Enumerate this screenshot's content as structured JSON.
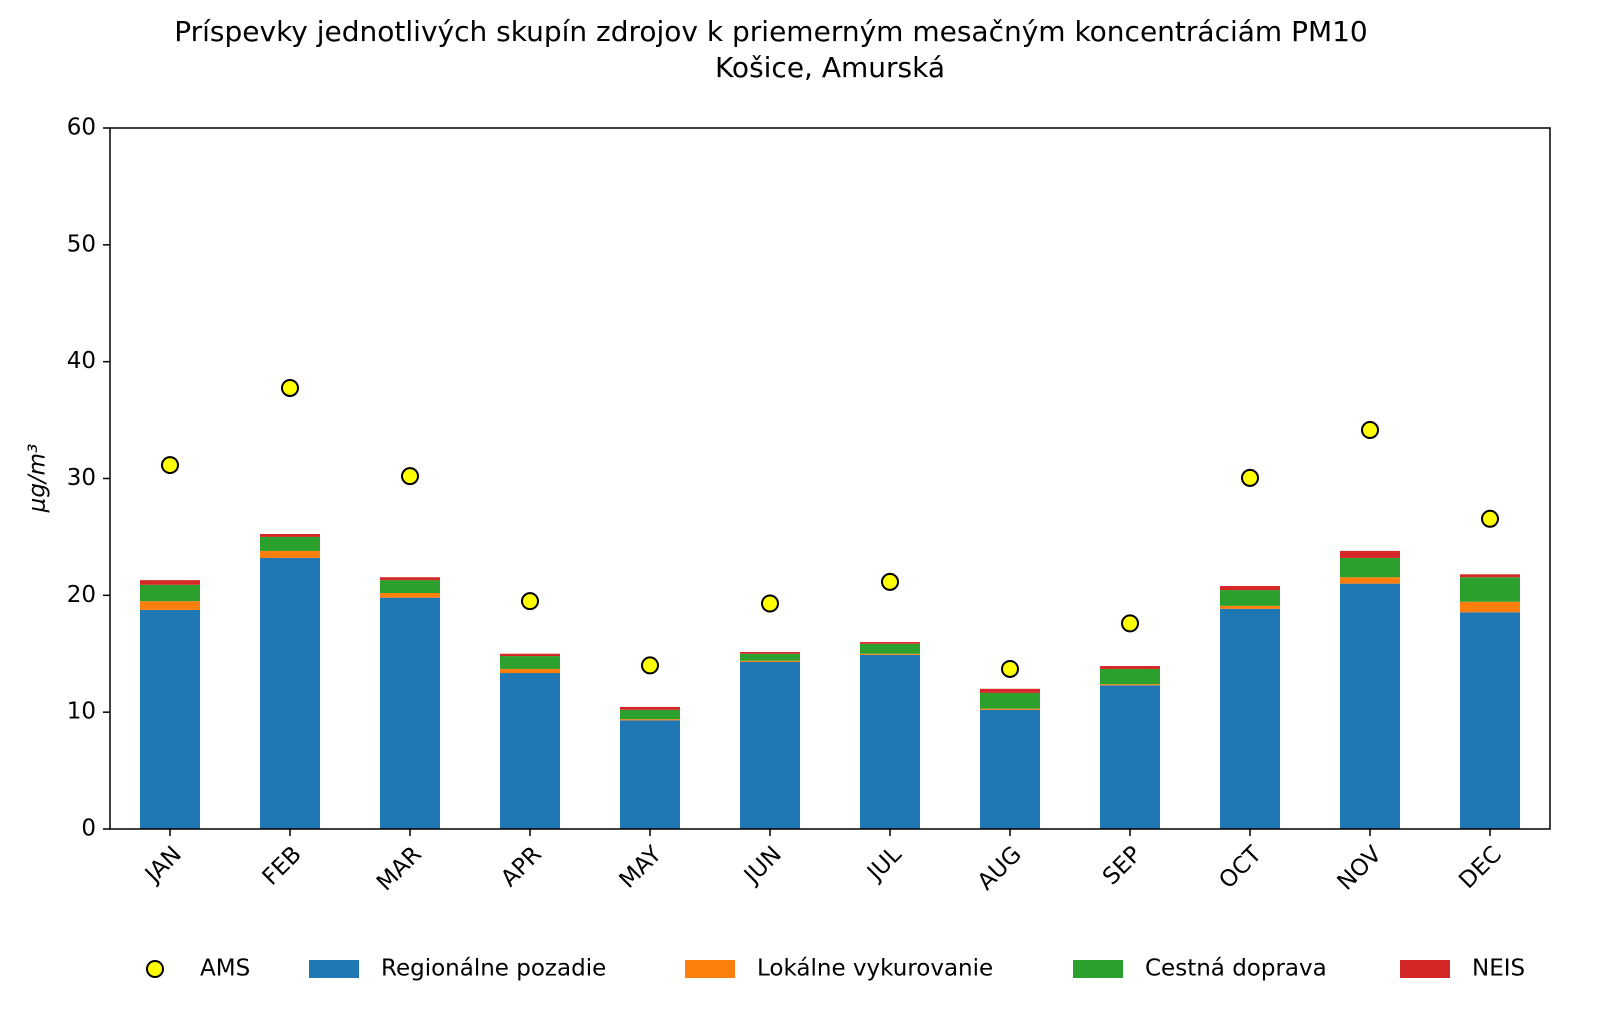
{
  "chart_data": {
    "type": "bar",
    "stacked": true,
    "title": "Príspevky jednotlivých skupín zdrojov k priemerným mesačným koncentráciám PM10",
    "subtitle": "Košice, Amurská",
    "y_label": "μg/m³",
    "categories": [
      "JAN",
      "FEB",
      "MAR",
      "APR",
      "MAY",
      "JUN",
      "JUL",
      "AUG",
      "SEP",
      "OCT",
      "NOV",
      "DEC"
    ],
    "ylim": [
      0,
      60
    ],
    "yticks": [
      0,
      10,
      20,
      30,
      40,
      50,
      60
    ],
    "legend": "bottom",
    "series": [
      {
        "name": "AMS",
        "mark": "marker",
        "color": "#ffff00",
        "values": [
          31.15,
          37.75,
          30.2,
          19.5,
          14.0,
          19.3,
          21.15,
          13.7,
          17.6,
          30.05,
          34.15,
          26.55
        ]
      },
      {
        "name": "Regionálne pozadie",
        "color": "#1f77b4",
        "values": [
          18.75,
          23.2,
          19.8,
          13.35,
          9.3,
          14.3,
          14.9,
          10.2,
          12.3,
          18.85,
          21.0,
          18.55
        ]
      },
      {
        "name": "Lokálne vykurovanie",
        "color": "#ff7f0e",
        "values": [
          0.75,
          0.6,
          0.4,
          0.35,
          0.1,
          0.1,
          0.1,
          0.1,
          0.1,
          0.25,
          0.55,
          0.9
        ]
      },
      {
        "name": "Cestná doprava",
        "color": "#2ca02c",
        "values": [
          1.4,
          1.2,
          1.1,
          1.1,
          0.8,
          0.6,
          0.85,
          1.35,
          1.3,
          1.35,
          1.65,
          2.1
        ]
      },
      {
        "name": "NEIS",
        "color": "#d62728",
        "values": [
          0.4,
          0.25,
          0.25,
          0.2,
          0.25,
          0.15,
          0.15,
          0.35,
          0.25,
          0.35,
          0.6,
          0.25
        ]
      }
    ]
  }
}
